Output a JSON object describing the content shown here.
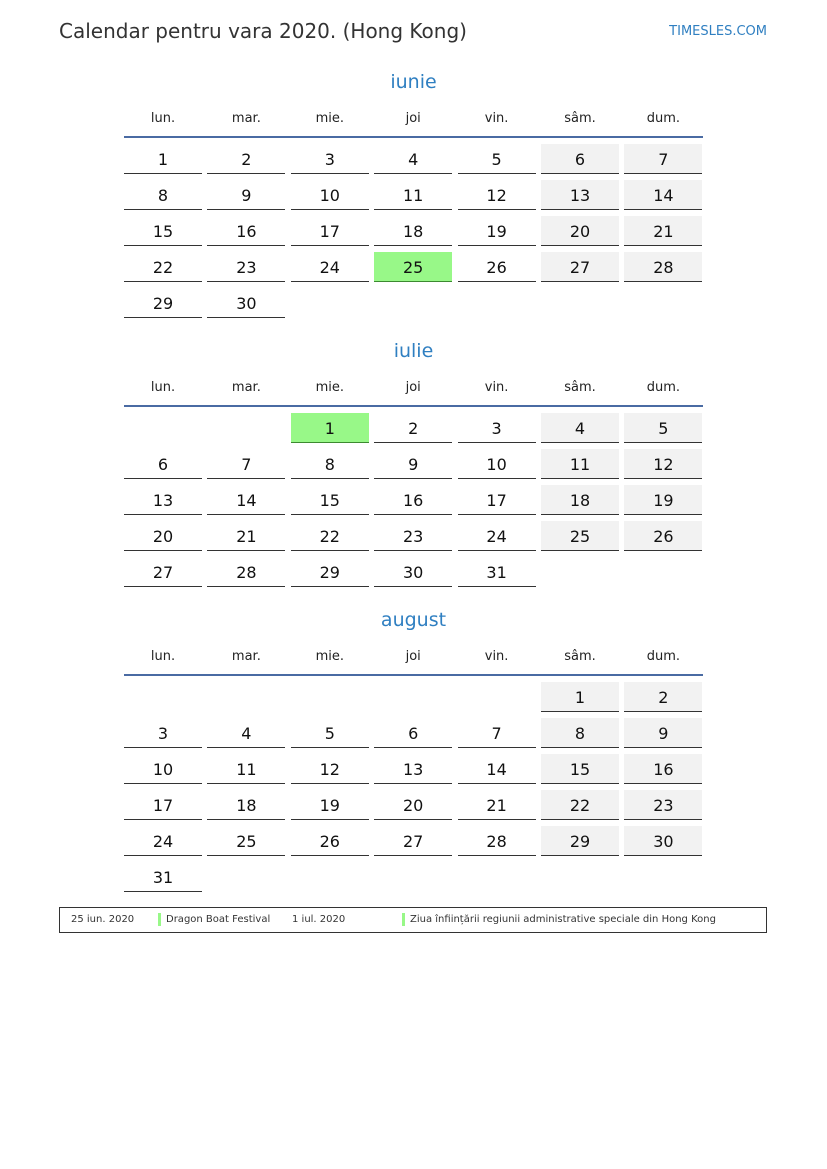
{
  "header": {
    "title": "Calendar pentru vara 2020. (Hong Kong)",
    "brand": "TIMESLES.COM"
  },
  "weekdays": [
    "lun.",
    "mar.",
    "mie.",
    "joi",
    "vin.",
    "sâm.",
    "dum."
  ],
  "colors": {
    "accent": "#2f7fc1",
    "holiday": "#98f888",
    "weekend": "#f2f2f2"
  },
  "months": [
    {
      "name": "iunie",
      "start_weekday": 0,
      "days": 30,
      "holidays": [
        25
      ]
    },
    {
      "name": "iulie",
      "start_weekday": 2,
      "days": 31,
      "holidays": [
        1
      ]
    },
    {
      "name": "august",
      "start_weekday": 5,
      "days": 31,
      "holidays": []
    }
  ],
  "legend": [
    {
      "date": "25 iun. 2020",
      "name": "Dragon Boat Festival"
    },
    {
      "date": "1 iul. 2020",
      "name": "Ziua înființării regiunii administrative speciale din Hong Kong"
    }
  ]
}
